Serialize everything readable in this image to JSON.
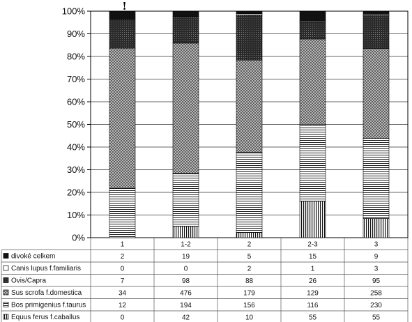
{
  "chart_data": {
    "type": "bar",
    "stacked": true,
    "normalized": true,
    "categories": [
      "1",
      "1-2",
      "2",
      "2-3",
      "3"
    ],
    "yticks": [
      "0%",
      "10%",
      "20%",
      "30%",
      "40%",
      "50%",
      "60%",
      "70%",
      "80%",
      "90%",
      "100%"
    ],
    "ylim": [
      0,
      100
    ],
    "grid": true,
    "legend": "table-below",
    "annotation": "!",
    "series": [
      {
        "name": "divoké celkem",
        "values": [
          2,
          19,
          5,
          15,
          9
        ],
        "pattern": "solid-dark",
        "color": "#1a1a1a"
      },
      {
        "name": "Canis lupus f.familiaris",
        "values": [
          0,
          0,
          2,
          1,
          3
        ],
        "pattern": "white",
        "color": "#ffffff"
      },
      {
        "name": "Ovis/Capra",
        "values": [
          7,
          98,
          88,
          26,
          95
        ],
        "pattern": "dark-dotted",
        "color": "#2b2b2b"
      },
      {
        "name": "Sus scrofa f.domestica",
        "values": [
          34,
          476,
          179,
          129,
          258
        ],
        "pattern": "crosshatch",
        "color": "#8a8a8a"
      },
      {
        "name": "Bos primigenius f.taurus",
        "values": [
          12,
          194,
          156,
          116,
          230
        ],
        "pattern": "horizontal",
        "color": "#555555"
      },
      {
        "name": "Equus ferus f.caballus",
        "values": [
          0,
          42,
          10,
          55,
          55
        ],
        "pattern": "vertical",
        "color": "#333333"
      }
    ]
  }
}
